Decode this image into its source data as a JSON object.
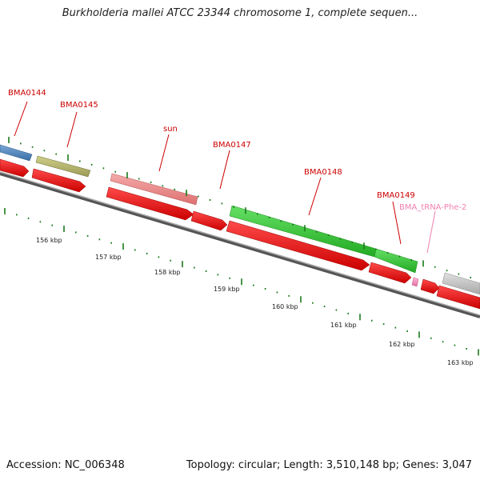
{
  "title": "Burkholderia mallei ATCC 23344 chromosome 1, complete sequen...",
  "footer": {
    "accession": "Accession: NC_006348",
    "summary": "Topology: circular; Length: 3,510,148 bp; Genes: 3,047"
  },
  "colors": {
    "gene_label": "#cc0000",
    "trna_label": "#f080b0",
    "cds": "#ee1111",
    "backbone": "#888888",
    "tick": "#1a7a1a"
  },
  "genes": [
    {
      "name": "",
      "color": "#4a7fb8"
    },
    {
      "name": "BMA0144",
      "color": "#4a7fb8"
    },
    {
      "name": "BMA0145",
      "color": "#b3b36b"
    },
    {
      "name": "sun",
      "color": "#ec8a8a"
    },
    {
      "name": "BMA0147",
      "color": "#ee1111"
    },
    {
      "name": "BMA0148",
      "color": "#33cc33"
    },
    {
      "name": "BMA0149",
      "color": "#33cc33"
    },
    {
      "name": "BMA_tRNA-Phe-2",
      "color": "#f080b0"
    },
    {
      "name": "",
      "color": "#c0c0c0"
    }
  ],
  "scale": {
    "unit": "kbp",
    "labels": [
      "156 kbp",
      "157 kbp",
      "158 kbp",
      "159 kbp",
      "160 kbp",
      "161 kbp",
      "162 kbp",
      "163 kbp"
    ]
  }
}
